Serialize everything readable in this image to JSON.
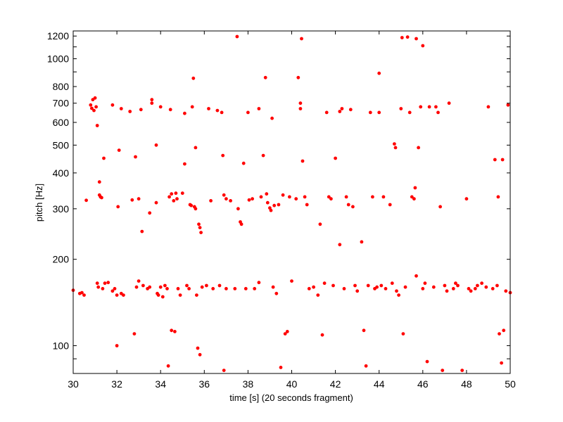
{
  "chart_data": {
    "type": "scatter",
    "title": "",
    "xlabel": "time [s] (20 seconds fragment)",
    "ylabel": "pitch [Hz]",
    "xlim": [
      30,
      50
    ],
    "ylim": [
      80,
      1250
    ],
    "yscale": "log",
    "grid": false,
    "legend": "none",
    "marker_color": "#ff0000",
    "x_ticks": [
      30,
      32,
      34,
      36,
      38,
      40,
      42,
      44,
      46,
      48,
      50
    ],
    "x_tick_labels": [
      "30",
      "32",
      "34",
      "36",
      "38",
      "40",
      "42",
      "44",
      "46",
      "48",
      "50"
    ],
    "y_ticks_labeled": [
      100,
      200,
      300,
      400,
      500,
      600,
      700,
      800,
      1000,
      1200
    ],
    "y_tick_labels": [
      "100",
      "200",
      "300",
      "400",
      "500",
      "600",
      "700",
      "800",
      "1000",
      "1200"
    ],
    "y_ticks_minor": [
      90,
      900,
      1100
    ],
    "series": [
      {
        "points": [
          [
            30.0,
            156
          ],
          [
            30.3,
            152
          ],
          [
            30.4,
            153
          ],
          [
            30.5,
            150
          ],
          [
            30.6,
            321
          ],
          [
            30.8,
            690
          ],
          [
            30.85,
            672
          ],
          [
            30.9,
            720
          ],
          [
            30.95,
            660
          ],
          [
            31.0,
            730
          ],
          [
            31.05,
            680
          ],
          [
            31.1,
            585
          ],
          [
            31.1,
            165
          ],
          [
            31.15,
            160
          ],
          [
            31.2,
            372
          ],
          [
            31.2,
            335
          ],
          [
            31.25,
            330
          ],
          [
            31.3,
            328
          ],
          [
            31.35,
            158
          ],
          [
            31.4,
            450
          ],
          [
            31.45,
            165
          ],
          [
            31.6,
            166
          ],
          [
            31.8,
            690
          ],
          [
            31.8,
            155
          ],
          [
            31.9,
            158
          ],
          [
            32.0,
            150
          ],
          [
            32.0,
            100
          ],
          [
            32.05,
            305
          ],
          [
            32.1,
            480
          ],
          [
            32.2,
            670
          ],
          [
            32.2,
            152
          ],
          [
            32.3,
            150
          ],
          [
            32.6,
            655
          ],
          [
            32.7,
            322
          ],
          [
            32.8,
            110
          ],
          [
            32.85,
            455
          ],
          [
            32.9,
            160
          ],
          [
            33.0,
            168
          ],
          [
            33.0,
            325
          ],
          [
            33.1,
            665
          ],
          [
            33.15,
            250
          ],
          [
            33.2,
            162
          ],
          [
            33.4,
            158
          ],
          [
            33.5,
            160
          ],
          [
            33.5,
            290
          ],
          [
            33.6,
            720
          ],
          [
            33.6,
            700
          ],
          [
            33.8,
            500
          ],
          [
            33.8,
            315
          ],
          [
            33.85,
            152
          ],
          [
            33.9,
            150
          ],
          [
            34.0,
            160
          ],
          [
            34.0,
            680
          ],
          [
            34.1,
            148
          ],
          [
            34.2,
            162
          ],
          [
            34.3,
            158
          ],
          [
            34.35,
            85
          ],
          [
            34.4,
            330
          ],
          [
            34.45,
            665
          ],
          [
            34.5,
            338
          ],
          [
            34.5,
            113
          ],
          [
            34.6,
            320
          ],
          [
            34.65,
            112
          ],
          [
            34.7,
            340
          ],
          [
            34.75,
            325
          ],
          [
            34.8,
            158
          ],
          [
            34.9,
            150
          ],
          [
            35.0,
            340
          ],
          [
            35.1,
            645
          ],
          [
            35.1,
            430
          ],
          [
            35.2,
            162
          ],
          [
            35.3,
            158
          ],
          [
            35.35,
            310
          ],
          [
            35.4,
            308
          ],
          [
            35.45,
            680
          ],
          [
            35.5,
            855
          ],
          [
            35.55,
            305
          ],
          [
            35.6,
            490
          ],
          [
            35.6,
            300
          ],
          [
            35.65,
            150
          ],
          [
            35.7,
            98
          ],
          [
            35.75,
            265
          ],
          [
            35.8,
            258
          ],
          [
            35.8,
            93
          ],
          [
            35.85,
            248
          ],
          [
            35.9,
            160
          ],
          [
            36.1,
            162
          ],
          [
            36.2,
            670
          ],
          [
            36.3,
            320
          ],
          [
            36.4,
            158
          ],
          [
            36.6,
            660
          ],
          [
            36.7,
            162
          ],
          [
            36.8,
            650
          ],
          [
            36.85,
            460
          ],
          [
            36.9,
            82
          ],
          [
            36.9,
            335
          ],
          [
            37.0,
            325
          ],
          [
            37.0,
            158
          ],
          [
            37.2,
            320
          ],
          [
            37.4,
            158
          ],
          [
            37.5,
            1195
          ],
          [
            37.55,
            300
          ],
          [
            37.65,
            270
          ],
          [
            37.7,
            265
          ],
          [
            37.8,
            432
          ],
          [
            37.9,
            158
          ],
          [
            38.0,
            650
          ],
          [
            38.05,
            322
          ],
          [
            38.2,
            325
          ],
          [
            38.3,
            158
          ],
          [
            38.5,
            670
          ],
          [
            38.5,
            166
          ],
          [
            38.6,
            330
          ],
          [
            38.7,
            460
          ],
          [
            38.8,
            860
          ],
          [
            38.85,
            338
          ],
          [
            38.9,
            315
          ],
          [
            39.0,
            302
          ],
          [
            39.05,
            296
          ],
          [
            39.1,
            620
          ],
          [
            39.15,
            160
          ],
          [
            39.2,
            308
          ],
          [
            39.3,
            152
          ],
          [
            39.4,
            310
          ],
          [
            39.5,
            84
          ],
          [
            39.6,
            335
          ],
          [
            39.7,
            110
          ],
          [
            39.8,
            112
          ],
          [
            39.9,
            330
          ],
          [
            40.0,
            168
          ],
          [
            40.2,
            325
          ],
          [
            40.3,
            860
          ],
          [
            40.4,
            700
          ],
          [
            40.4,
            670
          ],
          [
            40.45,
            1175
          ],
          [
            40.5,
            440
          ],
          [
            40.6,
            330
          ],
          [
            40.7,
            310
          ],
          [
            40.8,
            158
          ],
          [
            41.0,
            160
          ],
          [
            41.2,
            150
          ],
          [
            41.3,
            265
          ],
          [
            41.4,
            109
          ],
          [
            41.5,
            165
          ],
          [
            41.6,
            650
          ],
          [
            41.7,
            330
          ],
          [
            41.8,
            325
          ],
          [
            41.9,
            162
          ],
          [
            42.0,
            450
          ],
          [
            42.2,
            655
          ],
          [
            42.2,
            225
          ],
          [
            42.3,
            670
          ],
          [
            42.4,
            158
          ],
          [
            42.5,
            330
          ],
          [
            42.6,
            310
          ],
          [
            42.7,
            665
          ],
          [
            42.8,
            305
          ],
          [
            42.9,
            162
          ],
          [
            43.0,
            155
          ],
          [
            43.2,
            230
          ],
          [
            43.3,
            113
          ],
          [
            43.4,
            85
          ],
          [
            43.5,
            162
          ],
          [
            43.6,
            650
          ],
          [
            43.7,
            330
          ],
          [
            43.8,
            158
          ],
          [
            43.9,
            160
          ],
          [
            44.0,
            890
          ],
          [
            44.0,
            650
          ],
          [
            44.1,
            162
          ],
          [
            44.2,
            330
          ],
          [
            44.3,
            158
          ],
          [
            44.5,
            310
          ],
          [
            44.6,
            165
          ],
          [
            44.7,
            505
          ],
          [
            44.75,
            490
          ],
          [
            44.8,
            155
          ],
          [
            44.9,
            150
          ],
          [
            45.0,
            670
          ],
          [
            45.05,
            1185
          ],
          [
            45.1,
            110
          ],
          [
            45.2,
            160
          ],
          [
            45.3,
            1190
          ],
          [
            45.4,
            650
          ],
          [
            45.5,
            330
          ],
          [
            45.6,
            325
          ],
          [
            45.65,
            355
          ],
          [
            45.7,
            175
          ],
          [
            45.7,
            1175
          ],
          [
            45.8,
            490
          ],
          [
            45.9,
            680
          ],
          [
            46.0,
            1110
          ],
          [
            46.0,
            158
          ],
          [
            46.1,
            165
          ],
          [
            46.2,
            88
          ],
          [
            46.3,
            680
          ],
          [
            46.5,
            160
          ],
          [
            46.6,
            680
          ],
          [
            46.7,
            650
          ],
          [
            46.8,
            305
          ],
          [
            46.9,
            82
          ],
          [
            47.0,
            162
          ],
          [
            47.1,
            155
          ],
          [
            47.2,
            700
          ],
          [
            47.4,
            158
          ],
          [
            47.5,
            165
          ],
          [
            47.6,
            162
          ],
          [
            47.8,
            82
          ],
          [
            48.0,
            325
          ],
          [
            48.1,
            158
          ],
          [
            48.2,
            155
          ],
          [
            48.4,
            158
          ],
          [
            48.5,
            162
          ],
          [
            48.7,
            165
          ],
          [
            48.9,
            160
          ],
          [
            49.0,
            680
          ],
          [
            49.2,
            158
          ],
          [
            49.3,
            445
          ],
          [
            49.4,
            162
          ],
          [
            49.45,
            330
          ],
          [
            49.5,
            110
          ],
          [
            49.6,
            87
          ],
          [
            49.65,
            445
          ],
          [
            49.7,
            113
          ],
          [
            49.8,
            155
          ],
          [
            49.9,
            690
          ],
          [
            50.0,
            153
          ]
        ]
      }
    ]
  }
}
